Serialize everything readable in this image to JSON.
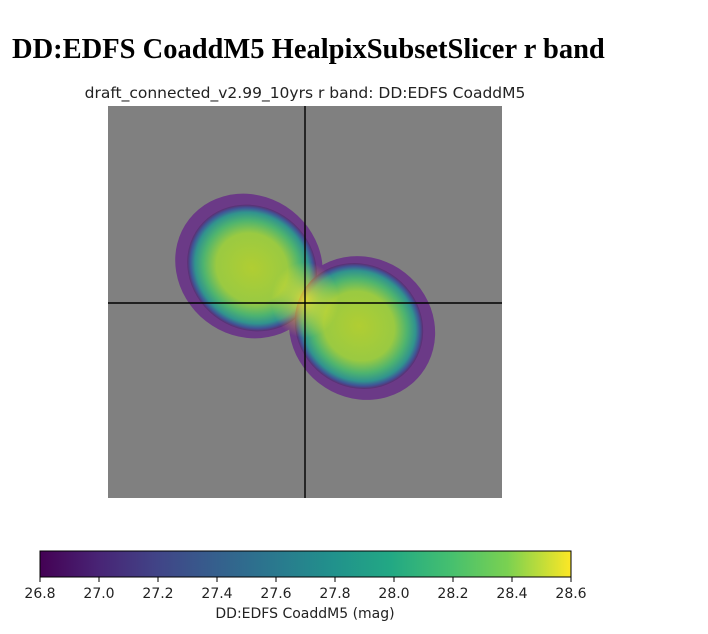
{
  "page": {
    "heading": "DD:EDFS CoaddM5 HealpixSubsetSlicer r band"
  },
  "chart_data": {
    "type": "heatmap",
    "title": "draft_connected_v2.99_10yrs r band: DD:EDFS CoaddM5",
    "colorbar": {
      "label": "DD:EDFS CoaddM5 (mag)",
      "range": [
        26.8,
        28.6
      ],
      "ticks": [
        26.8,
        27.0,
        27.2,
        27.4,
        27.6,
        27.8,
        28.0,
        28.2,
        28.4,
        28.6
      ],
      "tick_labels": [
        "26.8",
        "27.0",
        "27.2",
        "27.4",
        "27.6",
        "27.8",
        "28.0",
        "28.2",
        "28.4",
        "28.6"
      ],
      "colormap": "viridis",
      "placement": "bottom"
    },
    "background_color": "#808080",
    "crosshair": true,
    "footprint": {
      "description_value_range": [
        26.8,
        28.6
      ],
      "lobes": [
        {
          "name": "",
          "edge_value": 26.9,
          "center_value": 28.4
        },
        {
          "name": "",
          "edge_value": 26.9,
          "center_value": 28.4
        }
      ],
      "overlap_value": 28.6
    }
  }
}
